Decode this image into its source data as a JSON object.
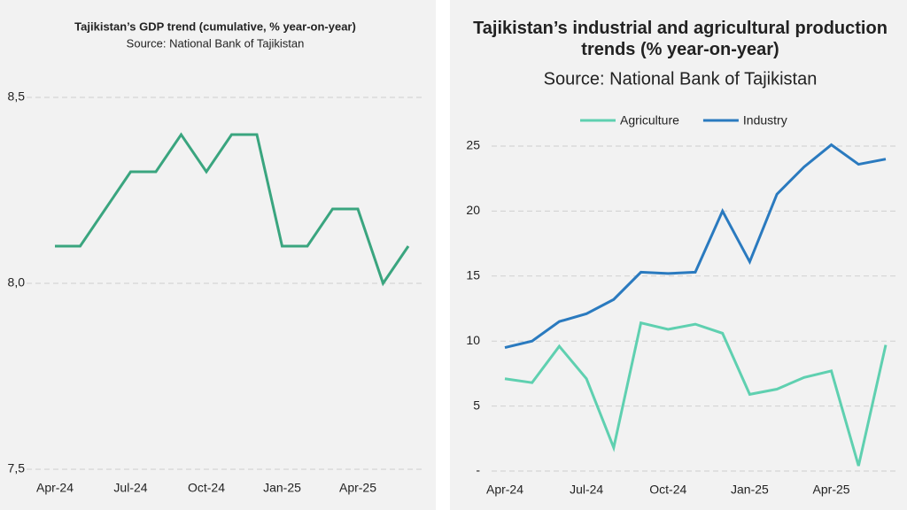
{
  "chart_data": [
    {
      "type": "line",
      "title": "Tajikistan’s GDP trend (cumulative, % year-on-year)",
      "subtitle": "Source: National Bank of Tajikistan",
      "categories": [
        "Apr-24",
        null,
        null,
        "Jul-24",
        null,
        null,
        "Oct-24",
        null,
        null,
        "Jan-25",
        null,
        null,
        "Apr-25",
        null,
        null
      ],
      "series": [
        {
          "name": "GDP",
          "color": "#3aa57f",
          "values": [
            8.1,
            8.1,
            8.2,
            8.3,
            8.3,
            8.4,
            8.3,
            8.4,
            8.4,
            8.1,
            8.1,
            8.2,
            8.2,
            8.0,
            8.1
          ]
        }
      ],
      "ylim": [
        7.5,
        8.5
      ],
      "yticks": [
        {
          "value": 7.5,
          "label": "7,5"
        },
        {
          "value": 8.0,
          "label": "8,0"
        },
        {
          "value": 8.5,
          "label": "8,5"
        }
      ],
      "grid": true,
      "legend": false
    },
    {
      "type": "line",
      "title": "Tajikistan’s industrial and agricultural production trends (% year-on-year)",
      "subtitle": "Source: National Bank of Tajikistan",
      "categories": [
        "Apr-24",
        null,
        null,
        "Jul-24",
        null,
        null,
        "Oct-24",
        null,
        null,
        "Jan-25",
        null,
        null,
        "Apr-25",
        null,
        null
      ],
      "series": [
        {
          "name": "Agriculture",
          "color": "#5fd0b0",
          "values": [
            7.1,
            6.8,
            9.6,
            7.1,
            1.8,
            11.4,
            10.9,
            11.3,
            10.6,
            5.9,
            6.3,
            7.2,
            7.7,
            0.4,
            9.7
          ]
        },
        {
          "name": "Industry",
          "color": "#2a7abf",
          "values": [
            9.5,
            10.0,
            11.5,
            12.1,
            13.2,
            15.3,
            15.2,
            15.3,
            20.0,
            16.1,
            21.3,
            23.4,
            25.1,
            23.6,
            24.0
          ]
        }
      ],
      "ylim": [
        0,
        25
      ],
      "yticks": [
        {
          "value": 0,
          "label": "-"
        },
        5,
        10,
        15,
        20,
        25
      ],
      "grid": true,
      "legend": "top"
    }
  ]
}
